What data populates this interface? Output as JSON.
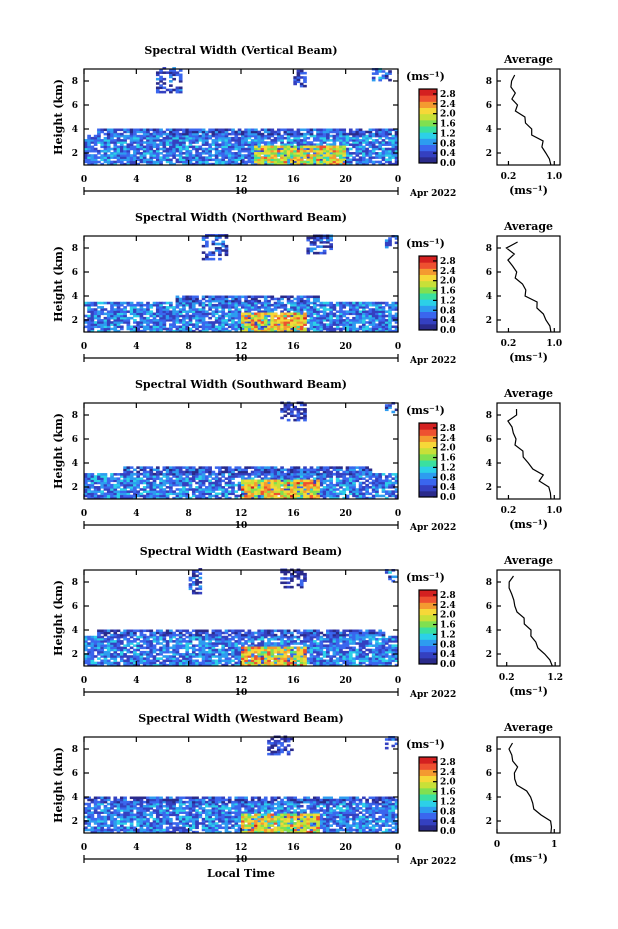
{
  "colorbar": {
    "unit": "(ms⁻¹)",
    "colors": [
      "#2a2a8a",
      "#3440c0",
      "#3a66ee",
      "#2d9cf0",
      "#2cd0e8",
      "#3ae0a0",
      "#80e050",
      "#c8e038",
      "#f6d838",
      "#f49a30",
      "#ee5030",
      "#d42020"
    ]
  },
  "panels": [
    {
      "title": "Spectral Width (Vertical Beam)",
      "ylabel": "Height (km)",
      "y_ticks": [
        "2",
        "4",
        "6",
        "8"
      ],
      "x_ticks": [
        "0",
        "4",
        "8",
        "12",
        "16",
        "20",
        "0"
      ],
      "date_day": "10",
      "date_month": "Apr 2022",
      "colorbar_ticks": [
        "2.8",
        "2.4",
        "2.0",
        "1.6",
        "1.2",
        "0.8",
        "0.4",
        "0.0"
      ],
      "avg": {
        "title": "Average",
        "x_ticks": [
          "0.2",
          "1.0"
        ],
        "y_ticks": [
          "2",
          "4",
          "6",
          "8"
        ],
        "xlabel": "(ms⁻¹)",
        "xlim": [
          0.0,
          1.1
        ]
      }
    },
    {
      "title": "Spectral Width (Northward Beam)",
      "ylabel": "Height (km)",
      "y_ticks": [
        "2",
        "4",
        "6",
        "8"
      ],
      "x_ticks": [
        "0",
        "4",
        "8",
        "12",
        "16",
        "20",
        "0"
      ],
      "date_day": "10",
      "date_month": "Apr 2022",
      "colorbar_ticks": [
        "2.8",
        "2.4",
        "2.0",
        "1.6",
        "1.2",
        "0.8",
        "0.4",
        "0.0"
      ],
      "avg": {
        "title": "Average",
        "x_ticks": [
          "0.2",
          "1.0"
        ],
        "y_ticks": [
          "2",
          "4",
          "6",
          "8"
        ],
        "xlabel": "(ms⁻¹)",
        "xlim": [
          0.0,
          1.1
        ]
      }
    },
    {
      "title": "Spectral Width (Southward Beam)",
      "ylabel": "Height (km)",
      "y_ticks": [
        "2",
        "4",
        "6",
        "8"
      ],
      "x_ticks": [
        "0",
        "4",
        "8",
        "12",
        "16",
        "20",
        "0"
      ],
      "date_day": "10",
      "date_month": "Apr 2022",
      "colorbar_ticks": [
        "2.8",
        "2.4",
        "2.0",
        "1.6",
        "1.2",
        "0.8",
        "0.4",
        "0.0"
      ],
      "avg": {
        "title": "Average",
        "x_ticks": [
          "0.2",
          "1.0"
        ],
        "y_ticks": [
          "2",
          "4",
          "6",
          "8"
        ],
        "xlabel": "(ms⁻¹)",
        "xlim": [
          0.0,
          1.1
        ]
      }
    },
    {
      "title": "Spectral Width (Eastward Beam)",
      "ylabel": "Height (km)",
      "y_ticks": [
        "2",
        "4",
        "6",
        "8"
      ],
      "x_ticks": [
        "0",
        "4",
        "8",
        "12",
        "16",
        "20",
        "0"
      ],
      "date_day": "10",
      "date_month": "Apr 2022",
      "colorbar_ticks": [
        "2.8",
        "2.4",
        "2.0",
        "1.6",
        "1.2",
        "0.8",
        "0.4",
        "0.0"
      ],
      "avg": {
        "title": "Average",
        "x_ticks": [
          "0.2",
          "1.2"
        ],
        "y_ticks": [
          "2",
          "4",
          "6",
          "8"
        ],
        "xlabel": "(ms⁻¹)",
        "xlim": [
          0.0,
          1.3
        ]
      }
    },
    {
      "title": "Spectral Width (Westward Beam)",
      "ylabel": "Height (km)",
      "y_ticks": [
        "2",
        "4",
        "6",
        "8"
      ],
      "x_ticks": [
        "0",
        "4",
        "8",
        "12",
        "16",
        "20",
        "0"
      ],
      "date_day": "10",
      "date_month": "Apr 2022",
      "colorbar_ticks": [
        "2.8",
        "2.4",
        "2.0",
        "1.6",
        "1.2",
        "0.8",
        "0.4",
        "0.0"
      ],
      "avg": {
        "title": "Average",
        "x_ticks": [
          "0",
          "1"
        ],
        "y_ticks": [
          "2",
          "4",
          "6",
          "8"
        ],
        "xlabel": "(ms⁻¹)",
        "xlim": [
          0.0,
          1.1
        ]
      }
    }
  ],
  "xlabel": "Local Time",
  "chart_data": [
    {
      "type": "heatmap",
      "title": "Spectral Width (Vertical Beam)",
      "xlabel": "Local Time",
      "ylabel": "Height (km)",
      "xlim": [
        0,
        24
      ],
      "ylim": [
        1,
        9
      ],
      "zlim": [
        0.0,
        3.0
      ],
      "blocks": [
        [
          0,
          24,
          1,
          3.5,
          0.7
        ],
        [
          1,
          24,
          3.5,
          4.0,
          0.5
        ],
        [
          13,
          20,
          1,
          2.5,
          1.6
        ],
        [
          5.5,
          7.5,
          7,
          9,
          0.4
        ],
        [
          16,
          17,
          7.5,
          9,
          0.3
        ],
        [
          22,
          23.5,
          8,
          9,
          0.6
        ]
      ],
      "avg_profile": {
        "height": [
          1,
          1.5,
          2,
          2.5,
          3,
          3.5,
          4,
          4.5,
          5,
          5.5,
          6,
          6.5,
          7,
          7.5,
          8,
          8.5
        ],
        "value": [
          1.0,
          0.95,
          0.9,
          0.8,
          0.75,
          0.65,
          0.6,
          0.5,
          0.45,
          0.35,
          0.3,
          0.25,
          0.3,
          0.2,
          0.25,
          0.3
        ]
      }
    },
    {
      "type": "heatmap",
      "title": "Spectral Width (Northward Beam)",
      "xlabel": "Local Time",
      "ylabel": "Height (km)",
      "xlim": [
        0,
        24
      ],
      "ylim": [
        1,
        9
      ],
      "zlim": [
        0.0,
        3.0
      ],
      "blocks": [
        [
          0,
          24,
          1,
          3.5,
          0.7
        ],
        [
          7,
          18,
          3.5,
          4.0,
          0.5
        ],
        [
          12,
          17,
          1,
          2.5,
          1.7
        ],
        [
          9,
          11,
          7,
          9,
          0.4
        ],
        [
          17,
          19,
          7.5,
          9,
          0.4
        ],
        [
          23,
          24,
          8,
          9,
          0.6
        ]
      ],
      "avg_profile": {
        "height": [
          1,
          1.5,
          2,
          2.5,
          3,
          3.5,
          4,
          4.5,
          5,
          5.5,
          6,
          6.5,
          7,
          7.5,
          8,
          8.5
        ],
        "value": [
          1.0,
          0.95,
          0.85,
          0.8,
          0.7,
          0.65,
          0.55,
          0.5,
          0.4,
          0.35,
          0.3,
          0.25,
          0.2,
          0.25,
          0.2,
          0.3
        ]
      }
    },
    {
      "type": "heatmap",
      "title": "Spectral Width (Southward Beam)",
      "xlabel": "Local Time",
      "ylabel": "Height (km)",
      "xlim": [
        0,
        24
      ],
      "ylim": [
        1,
        9
      ],
      "zlim": [
        0.0,
        3.0
      ],
      "blocks": [
        [
          0,
          24,
          1,
          3.0,
          0.7
        ],
        [
          3,
          22,
          3.0,
          3.6,
          0.5
        ],
        [
          12,
          18,
          1,
          2.5,
          1.7
        ],
        [
          15,
          17,
          7.5,
          9,
          0.3
        ],
        [
          23,
          24,
          8,
          9,
          0.6
        ]
      ],
      "avg_profile": {
        "height": [
          1,
          1.5,
          2,
          2.5,
          3,
          3.5,
          4,
          4.5,
          5,
          5.5,
          6,
          6.5,
          7,
          7.5,
          8,
          8.5
        ],
        "value": [
          1.0,
          0.95,
          0.85,
          0.7,
          0.75,
          0.6,
          0.55,
          0.45,
          0.4,
          0.35,
          0.3,
          0.25,
          0.3,
          0.25,
          0.3,
          0.35
        ]
      }
    },
    {
      "type": "heatmap",
      "title": "Spectral Width (Eastward Beam)",
      "xlabel": "Local Time",
      "ylabel": "Height (km)",
      "xlim": [
        0,
        24
      ],
      "ylim": [
        1,
        9
      ],
      "zlim": [
        0.0,
        3.0
      ],
      "blocks": [
        [
          0,
          24,
          1,
          3.5,
          0.7
        ],
        [
          1,
          23,
          3.5,
          4.0,
          0.5
        ],
        [
          12,
          17,
          1,
          2.5,
          1.7
        ],
        [
          8,
          9,
          7,
          9,
          0.4
        ],
        [
          15,
          17,
          7.5,
          9,
          0.3
        ],
        [
          23,
          24,
          8,
          9,
          0.6
        ]
      ],
      "avg_profile": {
        "height": [
          1,
          1.5,
          2,
          2.5,
          3,
          3.5,
          4,
          4.5,
          5,
          5.5,
          6,
          6.5,
          7,
          7.5,
          8,
          8.5
        ],
        "value": [
          1.2,
          1.1,
          1.0,
          0.9,
          0.8,
          0.7,
          0.65,
          0.55,
          0.5,
          0.45,
          0.35,
          0.3,
          0.25,
          0.3,
          0.25,
          0.3
        ]
      }
    },
    {
      "type": "heatmap",
      "title": "Spectral Width (Westward Beam)",
      "xlabel": "Local Time",
      "ylabel": "Height (km)",
      "xlim": [
        0,
        24
      ],
      "ylim": [
        1,
        9
      ],
      "zlim": [
        0.0,
        3.0
      ],
      "blocks": [
        [
          0,
          24,
          1,
          3.5,
          0.7
        ],
        [
          0,
          24,
          3.5,
          4.0,
          0.5
        ],
        [
          12,
          18,
          1,
          2.5,
          1.6
        ],
        [
          14,
          16,
          7.5,
          9,
          0.3
        ],
        [
          23,
          24,
          8,
          9,
          0.6
        ]
      ],
      "avg_profile": {
        "height": [
          1,
          1.5,
          2,
          2.5,
          3,
          3.5,
          4,
          4.5,
          5,
          5.5,
          6,
          6.5,
          7,
          7.5,
          8,
          8.5
        ],
        "value": [
          1.0,
          0.95,
          0.9,
          0.8,
          0.7,
          0.65,
          0.6,
          0.5,
          0.4,
          0.35,
          0.3,
          0.3,
          0.25,
          0.3,
          0.25,
          0.3
        ]
      }
    }
  ]
}
